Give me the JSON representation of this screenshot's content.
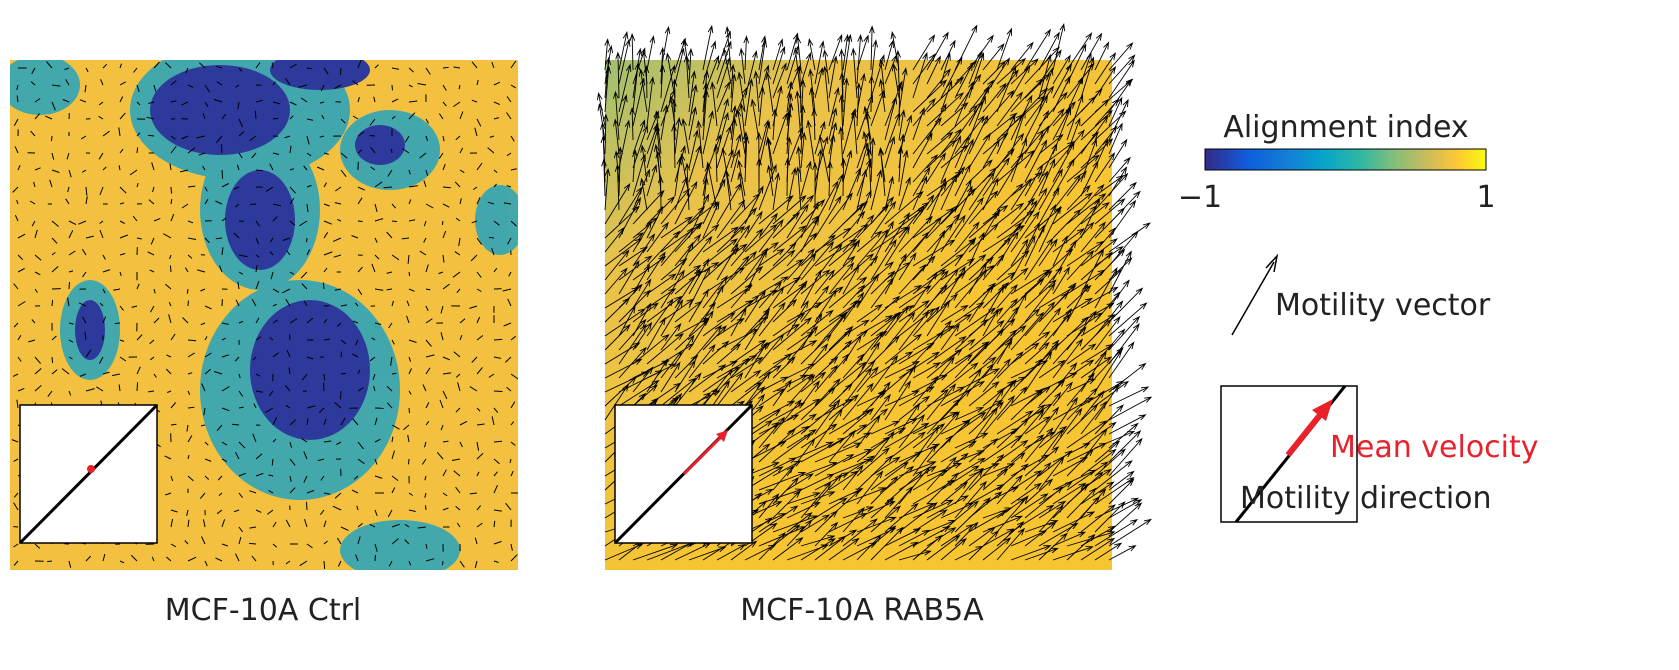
{
  "panels": [
    {
      "caption": "MCF-10A Ctrl"
    },
    {
      "caption": "MCF-10A RAB5A"
    }
  ],
  "legend": {
    "title": "Alignment index",
    "min_label": "−1",
    "max_label": "1",
    "vector_label": "Motility vector",
    "mean_velocity_label": "Mean velocity",
    "direction_label": "Motility direction"
  }
}
